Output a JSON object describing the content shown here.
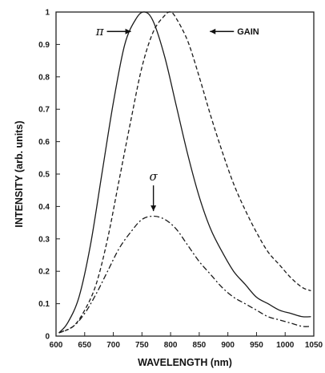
{
  "chart_data": {
    "type": "line",
    "xlabel": "WAVELENGTH (nm)",
    "ylabel": "INTENSITY (arb. units)",
    "xlim": [
      600,
      1050
    ],
    "ylim": [
      0,
      1
    ],
    "xticks": [
      "600",
      "650",
      "700",
      "750",
      "800",
      "850",
      "900",
      "950",
      "1000",
      "1050"
    ],
    "yticks": [
      "0",
      "0.1",
      "0.2",
      "0.3",
      "0.4",
      "0.5",
      "0.6",
      "0.7",
      "0.8",
      "0.9",
      "1"
    ],
    "grid": false,
    "legend": "none",
    "series": [
      {
        "name": "π",
        "style": "solid",
        "x": [
          605,
          620,
          640,
          660,
          680,
          700,
          720,
          740,
          755,
          770,
          790,
          810,
          830,
          850,
          870,
          890,
          910,
          930,
          950,
          970,
          990,
          1010,
          1030,
          1045
        ],
        "y": [
          0.01,
          0.04,
          0.12,
          0.28,
          0.5,
          0.72,
          0.9,
          0.98,
          1.0,
          0.97,
          0.86,
          0.71,
          0.56,
          0.43,
          0.33,
          0.26,
          0.2,
          0.16,
          0.12,
          0.1,
          0.08,
          0.07,
          0.06,
          0.06
        ]
      },
      {
        "name": "GAIN",
        "style": "dashed",
        "x": [
          605,
          630,
          650,
          670,
          690,
          710,
          730,
          750,
          770,
          790,
          800,
          810,
          830,
          850,
          870,
          890,
          910,
          930,
          950,
          970,
          990,
          1010,
          1030,
          1045
        ],
        "y": [
          0.01,
          0.03,
          0.08,
          0.16,
          0.3,
          0.48,
          0.66,
          0.83,
          0.94,
          0.99,
          1.0,
          0.98,
          0.91,
          0.8,
          0.68,
          0.57,
          0.47,
          0.39,
          0.32,
          0.26,
          0.22,
          0.18,
          0.15,
          0.14
        ]
      },
      {
        "name": "σ",
        "style": "dash-dot",
        "x": [
          605,
          630,
          650,
          670,
          690,
          710,
          730,
          750,
          770,
          790,
          810,
          830,
          850,
          870,
          890,
          910,
          930,
          950,
          970,
          990,
          1010,
          1030,
          1045
        ],
        "y": [
          0.01,
          0.03,
          0.07,
          0.13,
          0.2,
          0.27,
          0.32,
          0.36,
          0.37,
          0.36,
          0.33,
          0.28,
          0.23,
          0.19,
          0.15,
          0.12,
          0.1,
          0.08,
          0.06,
          0.05,
          0.04,
          0.03,
          0.03
        ]
      }
    ],
    "annotations": [
      {
        "text": "π",
        "target_series": "π",
        "x": 700,
        "y": 0.94,
        "arrow": "right"
      },
      {
        "text": "GAIN",
        "target_series": "GAIN",
        "x": 905,
        "y": 0.94,
        "arrow": "left"
      },
      {
        "text": "σ",
        "target_series": "σ",
        "x": 770,
        "y": 0.47,
        "arrow": "down"
      }
    ]
  }
}
